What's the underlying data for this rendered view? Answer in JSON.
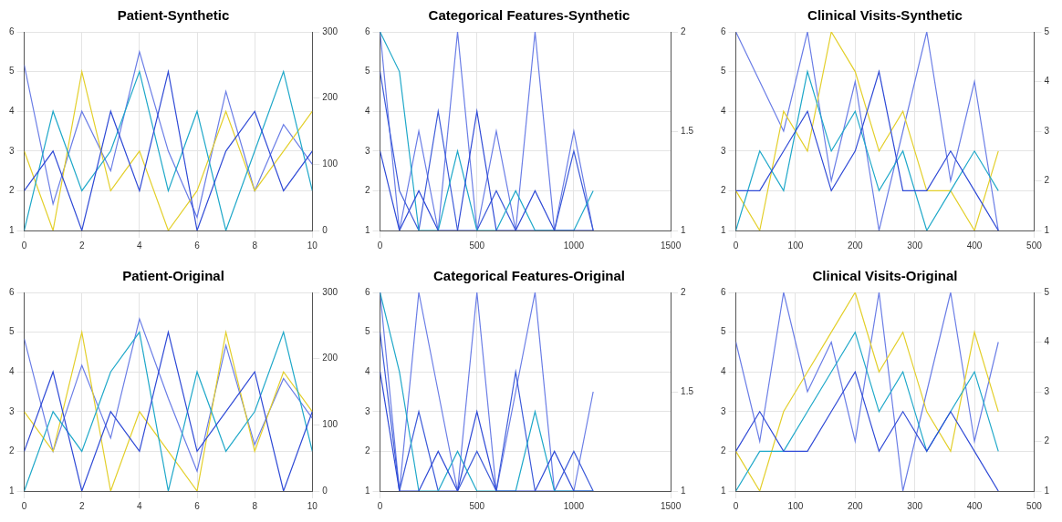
{
  "chart_data": [
    {
      "type": "line",
      "title": "Patient-Synthetic",
      "x": [
        0,
        1,
        2,
        3,
        4,
        5,
        6,
        7,
        8,
        9,
        10
      ],
      "xlim": [
        0,
        10
      ],
      "xticks": [
        0,
        2,
        4,
        6,
        8,
        10
      ],
      "ylim": [
        1,
        6
      ],
      "yticks": [
        1,
        2,
        3,
        4,
        5,
        6
      ],
      "y2lim": [
        0,
        300
      ],
      "y2ticks": [
        0,
        100,
        200,
        300
      ],
      "grid": true,
      "series": [
        {
          "color": "#2f4ad6",
          "values": [
            2,
            3,
            1,
            4,
            2,
            5,
            1,
            3,
            4,
            2,
            3
          ]
        },
        {
          "color": "#1fa8c9",
          "values": [
            1,
            4,
            2,
            3,
            5,
            2,
            4,
            1,
            3,
            5,
            2
          ]
        },
        {
          "color": "#e3cf2a",
          "values": [
            3,
            1,
            5,
            2,
            3,
            1,
            2,
            4,
            2,
            3,
            4
          ]
        },
        {
          "color": "#6a7de6",
          "axis": "y2",
          "values": [
            250,
            40,
            180,
            90,
            270,
            120,
            20,
            210,
            60,
            160,
            100
          ]
        }
      ]
    },
    {
      "type": "line",
      "title": "Categorical Features-Synthetic",
      "x": [
        0,
        100,
        200,
        300,
        400,
        500,
        600,
        700,
        800,
        900,
        1000,
        1100
      ],
      "xlim": [
        0,
        1500
      ],
      "xticks": [
        0,
        500,
        1000,
        1500
      ],
      "ylim": [
        1,
        6
      ],
      "yticks": [
        1,
        2,
        3,
        4,
        5,
        6
      ],
      "y2lim": [
        1,
        2
      ],
      "y2ticks": [
        1,
        1.5,
        2
      ],
      "grid": true,
      "series": [
        {
          "color": "#2f4ad6",
          "values": [
            3,
            1,
            2,
            1,
            1,
            4,
            1,
            1,
            2,
            1,
            1,
            1
          ]
        },
        {
          "color": "#1fa8c9",
          "values": [
            6,
            5,
            1,
            1,
            3,
            1,
            1,
            2,
            1,
            1,
            1,
            2
          ]
        },
        {
          "color": "#3d5bd9",
          "values": [
            5,
            2,
            1,
            4,
            1,
            1,
            2,
            1,
            1,
            1,
            3,
            1
          ]
        },
        {
          "color": "#6a7de6",
          "axis": "y2",
          "values": [
            2,
            1,
            1.5,
            1,
            2,
            1,
            1.5,
            1,
            2,
            1,
            1.5,
            1
          ]
        }
      ]
    },
    {
      "type": "line",
      "title": "Clinical Visits-Synthetic",
      "x": [
        0,
        40,
        80,
        120,
        160,
        200,
        240,
        280,
        320,
        360,
        400,
        440
      ],
      "xlim": [
        0,
        500
      ],
      "xticks": [
        0,
        100,
        200,
        300,
        400,
        500
      ],
      "ylim": [
        1,
        6
      ],
      "yticks": [
        1,
        2,
        3,
        4,
        5,
        6
      ],
      "y2lim": [
        1,
        5
      ],
      "y2ticks": [
        1,
        2,
        3,
        4,
        5
      ],
      "grid": true,
      "series": [
        {
          "color": "#2f4ad6",
          "values": [
            2,
            2,
            3,
            4,
            2,
            3,
            5,
            2,
            2,
            3,
            2,
            1
          ]
        },
        {
          "color": "#1fa8c9",
          "values": [
            1,
            3,
            2,
            5,
            3,
            4,
            2,
            3,
            1,
            2,
            3,
            2
          ]
        },
        {
          "color": "#e3cf2a",
          "values": [
            2,
            1,
            4,
            3,
            6,
            5,
            3,
            4,
            2,
            2,
            1,
            3
          ]
        },
        {
          "color": "#6a7de6",
          "axis": "y2",
          "values": [
            5,
            4,
            3,
            5,
            2,
            4,
            1,
            3,
            5,
            2,
            4,
            1
          ]
        }
      ]
    },
    {
      "type": "line",
      "title": "Patient-Original",
      "x": [
        0,
        1,
        2,
        3,
        4,
        5,
        6,
        7,
        8,
        9,
        10
      ],
      "xlim": [
        0,
        10
      ],
      "xticks": [
        0,
        2,
        4,
        6,
        8,
        10
      ],
      "ylim": [
        1,
        6
      ],
      "yticks": [
        1,
        2,
        3,
        4,
        5,
        6
      ],
      "y2lim": [
        0,
        300
      ],
      "y2ticks": [
        0,
        100,
        200,
        300
      ],
      "grid": true,
      "series": [
        {
          "color": "#2f4ad6",
          "values": [
            2,
            4,
            1,
            3,
            2,
            5,
            2,
            3,
            4,
            1,
            3
          ]
        },
        {
          "color": "#1fa8c9",
          "values": [
            1,
            3,
            2,
            4,
            5,
            1,
            4,
            2,
            3,
            5,
            2
          ]
        },
        {
          "color": "#e3cf2a",
          "values": [
            3,
            2,
            5,
            1,
            3,
            2,
            1,
            5,
            2,
            4,
            3
          ]
        },
        {
          "color": "#6a7de6",
          "axis": "y2",
          "values": [
            230,
            60,
            190,
            80,
            260,
            140,
            30,
            220,
            70,
            170,
            110
          ]
        }
      ]
    },
    {
      "type": "line",
      "title": "Categorical Features-Original",
      "x": [
        0,
        100,
        200,
        300,
        400,
        500,
        600,
        700,
        800,
        900,
        1000,
        1100
      ],
      "xlim": [
        0,
        1500
      ],
      "xticks": [
        0,
        500,
        1000,
        1500
      ],
      "ylim": [
        1,
        6
      ],
      "yticks": [
        1,
        2,
        3,
        4,
        5,
        6
      ],
      "y2lim": [
        1,
        2
      ],
      "y2ticks": [
        1,
        1.5,
        2
      ],
      "grid": true,
      "series": [
        {
          "color": "#2f4ad6",
          "values": [
            4,
            1,
            1,
            2,
            1,
            3,
            1,
            1,
            1,
            2,
            1,
            1
          ]
        },
        {
          "color": "#1fa8c9",
          "values": [
            6,
            4,
            1,
            1,
            2,
            1,
            1,
            1,
            3,
            1,
            1,
            1
          ]
        },
        {
          "color": "#3d5bd9",
          "values": [
            5,
            1,
            3,
            1,
            1,
            2,
            1,
            4,
            1,
            1,
            2,
            1
          ]
        },
        {
          "color": "#6a7de6",
          "axis": "y2",
          "values": [
            2,
            1,
            2,
            1.5,
            1,
            2,
            1,
            1.5,
            2,
            1,
            1,
            1.5
          ]
        }
      ]
    },
    {
      "type": "line",
      "title": "Clinical Visits-Original",
      "x": [
        0,
        40,
        80,
        120,
        160,
        200,
        240,
        280,
        320,
        360,
        400,
        440
      ],
      "xlim": [
        0,
        500
      ],
      "xticks": [
        0,
        100,
        200,
        300,
        400,
        500
      ],
      "ylim": [
        1,
        6
      ],
      "yticks": [
        1,
        2,
        3,
        4,
        5,
        6
      ],
      "y2lim": [
        1,
        5
      ],
      "y2ticks": [
        1,
        2,
        3,
        4,
        5
      ],
      "grid": true,
      "series": [
        {
          "color": "#2f4ad6",
          "values": [
            2,
            3,
            2,
            2,
            3,
            4,
            2,
            3,
            2,
            3,
            2,
            1
          ]
        },
        {
          "color": "#1fa8c9",
          "values": [
            1,
            2,
            2,
            3,
            4,
            5,
            3,
            4,
            2,
            3,
            4,
            2
          ]
        },
        {
          "color": "#e3cf2a",
          "values": [
            2,
            1,
            3,
            4,
            5,
            6,
            4,
            5,
            3,
            2,
            5,
            3
          ]
        },
        {
          "color": "#6a7de6",
          "axis": "y2",
          "values": [
            4,
            2,
            5,
            3,
            4,
            2,
            5,
            1,
            3,
            5,
            2,
            4
          ]
        }
      ]
    }
  ]
}
